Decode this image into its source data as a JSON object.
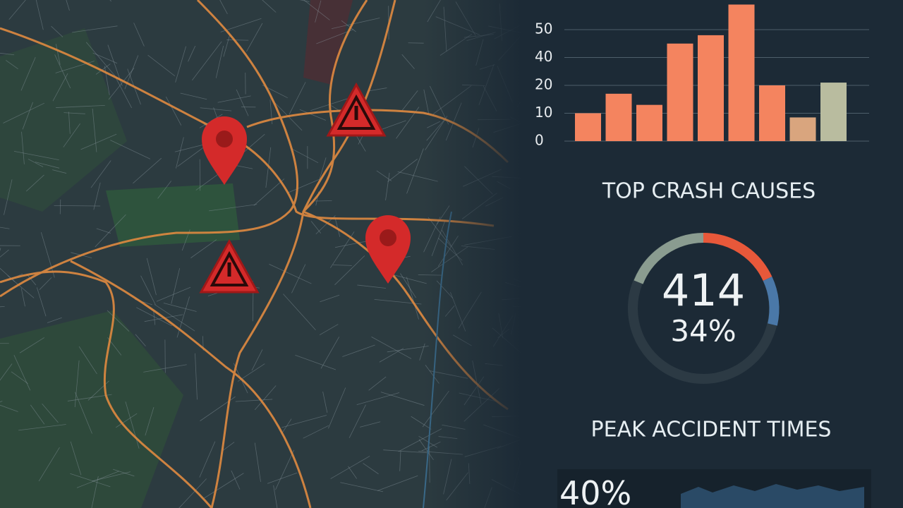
{
  "bar_chart": {
    "type": "bar",
    "yticks": [
      0,
      10,
      20,
      40,
      50
    ],
    "values": [
      10,
      17,
      13,
      45,
      48,
      59,
      20,
      8.5,
      22
    ],
    "colors": [
      "#f4845f",
      "#f4845f",
      "#f4845f",
      "#f4845f",
      "#f4845f",
      "#f4845f",
      "#f4845f",
      "#d9a57e",
      "#b9bc9f"
    ],
    "grid": true
  },
  "causes": {
    "title": "TOP CRASH CAUSES",
    "total": 414,
    "percent": "34%"
  },
  "peak": {
    "title": "PEAK ACCIDENT TIMES",
    "percent": "40%"
  }
}
